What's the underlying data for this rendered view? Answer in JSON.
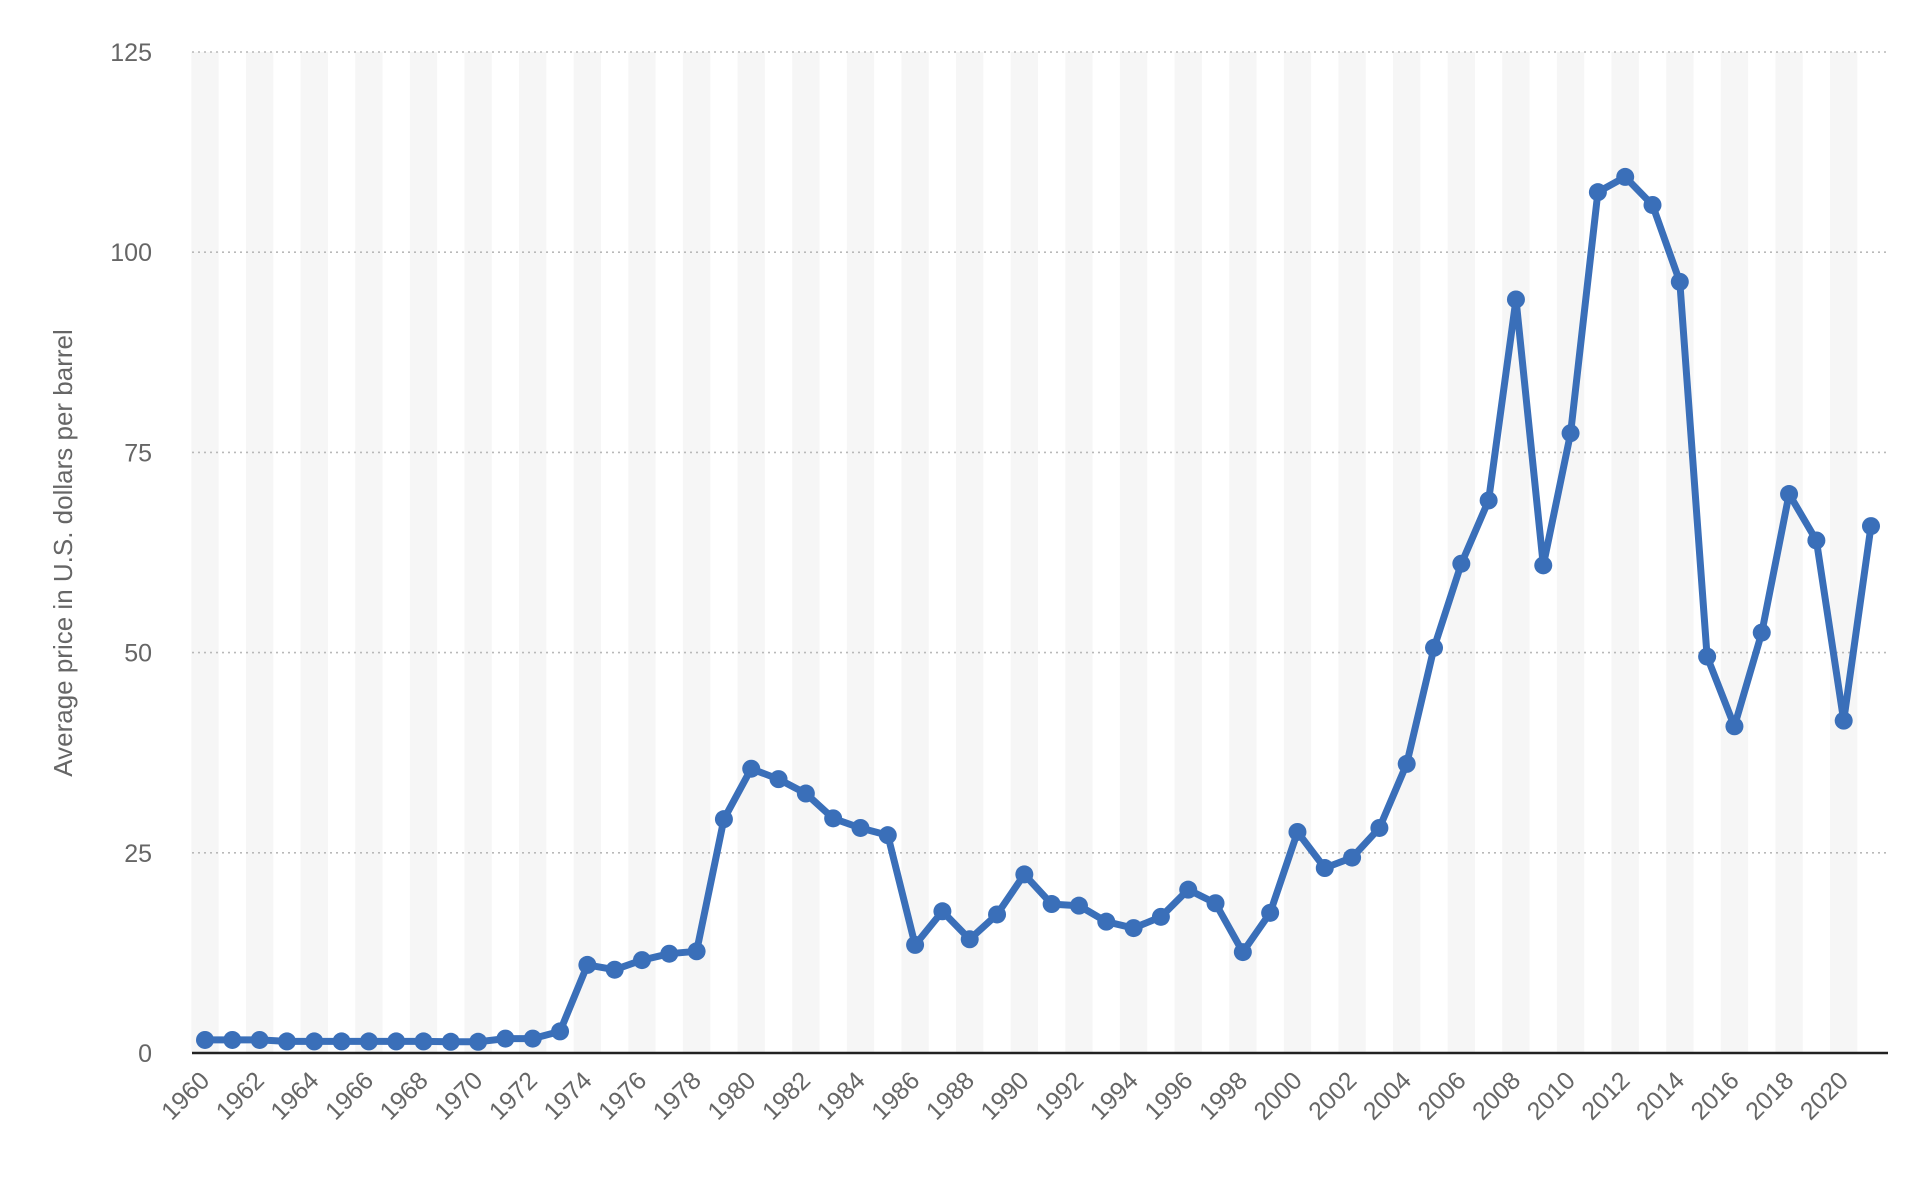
{
  "chart_data": {
    "type": "line",
    "title": "",
    "xlabel": "",
    "ylabel": "Average price in U.S. dollars per barrel",
    "ylim": [
      0,
      125
    ],
    "yticks": [
      0,
      25,
      50,
      75,
      100,
      125
    ],
    "xtick_labels": [
      "1960",
      "1962",
      "1964",
      "1966",
      "1968",
      "1970",
      "1972",
      "1974",
      "1976",
      "1978",
      "1980",
      "1982",
      "1984",
      "1986",
      "1988",
      "1990",
      "1992",
      "1994",
      "1996",
      "1998",
      "2000",
      "2002",
      "2004",
      "2006",
      "2008",
      "2010",
      "2012",
      "2014",
      "2016",
      "2018",
      "2020"
    ],
    "grid": "horizontal dotted",
    "legend": "none",
    "series": [
      {
        "color": "#3a6fb9",
        "x": [
          1960,
          1961,
          1962,
          1963,
          1964,
          1965,
          1966,
          1967,
          1968,
          1969,
          1970,
          1971,
          1972,
          1973,
          1974,
          1975,
          1976,
          1977,
          1978,
          1979,
          1980,
          1981,
          1982,
          1983,
          1984,
          1985,
          1986,
          1987,
          1988,
          1989,
          1990,
          1991,
          1992,
          1993,
          1994,
          1995,
          1996,
          1997,
          1998,
          1999,
          2000,
          2001,
          2002,
          2003,
          2004,
          2005,
          2006,
          2007,
          2008,
          2009,
          2010,
          2011,
          2012,
          2013,
          2014,
          2015,
          2016,
          2017,
          2018,
          2019,
          2020,
          2021
        ],
        "values": [
          1.63,
          1.63,
          1.63,
          1.45,
          1.45,
          1.45,
          1.45,
          1.45,
          1.45,
          1.4,
          1.4,
          1.8,
          1.8,
          2.7,
          11.0,
          10.4,
          11.6,
          12.4,
          12.7,
          29.2,
          35.5,
          34.2,
          32.4,
          29.3,
          28.1,
          27.2,
          13.5,
          17.7,
          14.2,
          17.3,
          22.3,
          18.6,
          18.4,
          16.4,
          15.6,
          17.0,
          20.4,
          18.7,
          12.6,
          17.5,
          27.6,
          23.1,
          24.4,
          28.1,
          36.1,
          50.6,
          61.1,
          69.0,
          94.1,
          60.9,
          77.4,
          107.5,
          109.4,
          105.9,
          96.3,
          49.5,
          40.8,
          52.5,
          69.8,
          64.0,
          41.5,
          65.8
        ]
      }
    ]
  }
}
